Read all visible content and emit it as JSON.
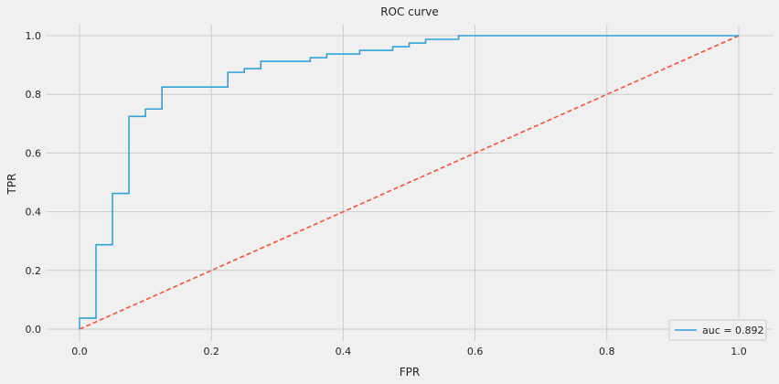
{
  "chart_data": {
    "type": "line",
    "title": "ROC curve",
    "xlabel": "FPR",
    "ylabel": "TPR",
    "xlim": [
      0.0,
      1.0
    ],
    "ylim": [
      0.0,
      1.0
    ],
    "xticks": [
      "0.0",
      "0.2",
      "0.4",
      "0.6",
      "0.8",
      "1.0"
    ],
    "yticks": [
      "0.0",
      "0.2",
      "0.4",
      "0.6",
      "0.8",
      "1.0"
    ],
    "grid": true,
    "legend_position": "bottom-right",
    "series": [
      {
        "name": "auc = 0.892",
        "style": "step",
        "color": "#30a2da",
        "x": [
          0.0,
          0.0,
          0.025,
          0.025,
          0.05,
          0.05,
          0.075,
          0.075,
          0.1,
          0.1,
          0.125,
          0.125,
          0.225,
          0.225,
          0.25,
          0.25,
          0.275,
          0.275,
          0.35,
          0.35,
          0.375,
          0.375,
          0.425,
          0.425,
          0.475,
          0.475,
          0.5,
          0.5,
          0.525,
          0.525,
          0.575,
          0.575,
          1.0
        ],
        "y": [
          0.0,
          0.0375,
          0.0375,
          0.2875,
          0.2875,
          0.4625,
          0.4625,
          0.725,
          0.725,
          0.75,
          0.75,
          0.825,
          0.825,
          0.875,
          0.875,
          0.8875,
          0.8875,
          0.9125,
          0.9125,
          0.925,
          0.925,
          0.9375,
          0.9375,
          0.95,
          0.95,
          0.9625,
          0.9625,
          0.975,
          0.975,
          0.9875,
          0.9875,
          1.0,
          1.0
        ]
      },
      {
        "name": "",
        "style": "dashed",
        "color": "#fc4f30",
        "x": [
          0.0,
          1.0
        ],
        "y": [
          0.0,
          1.0
        ]
      }
    ]
  }
}
